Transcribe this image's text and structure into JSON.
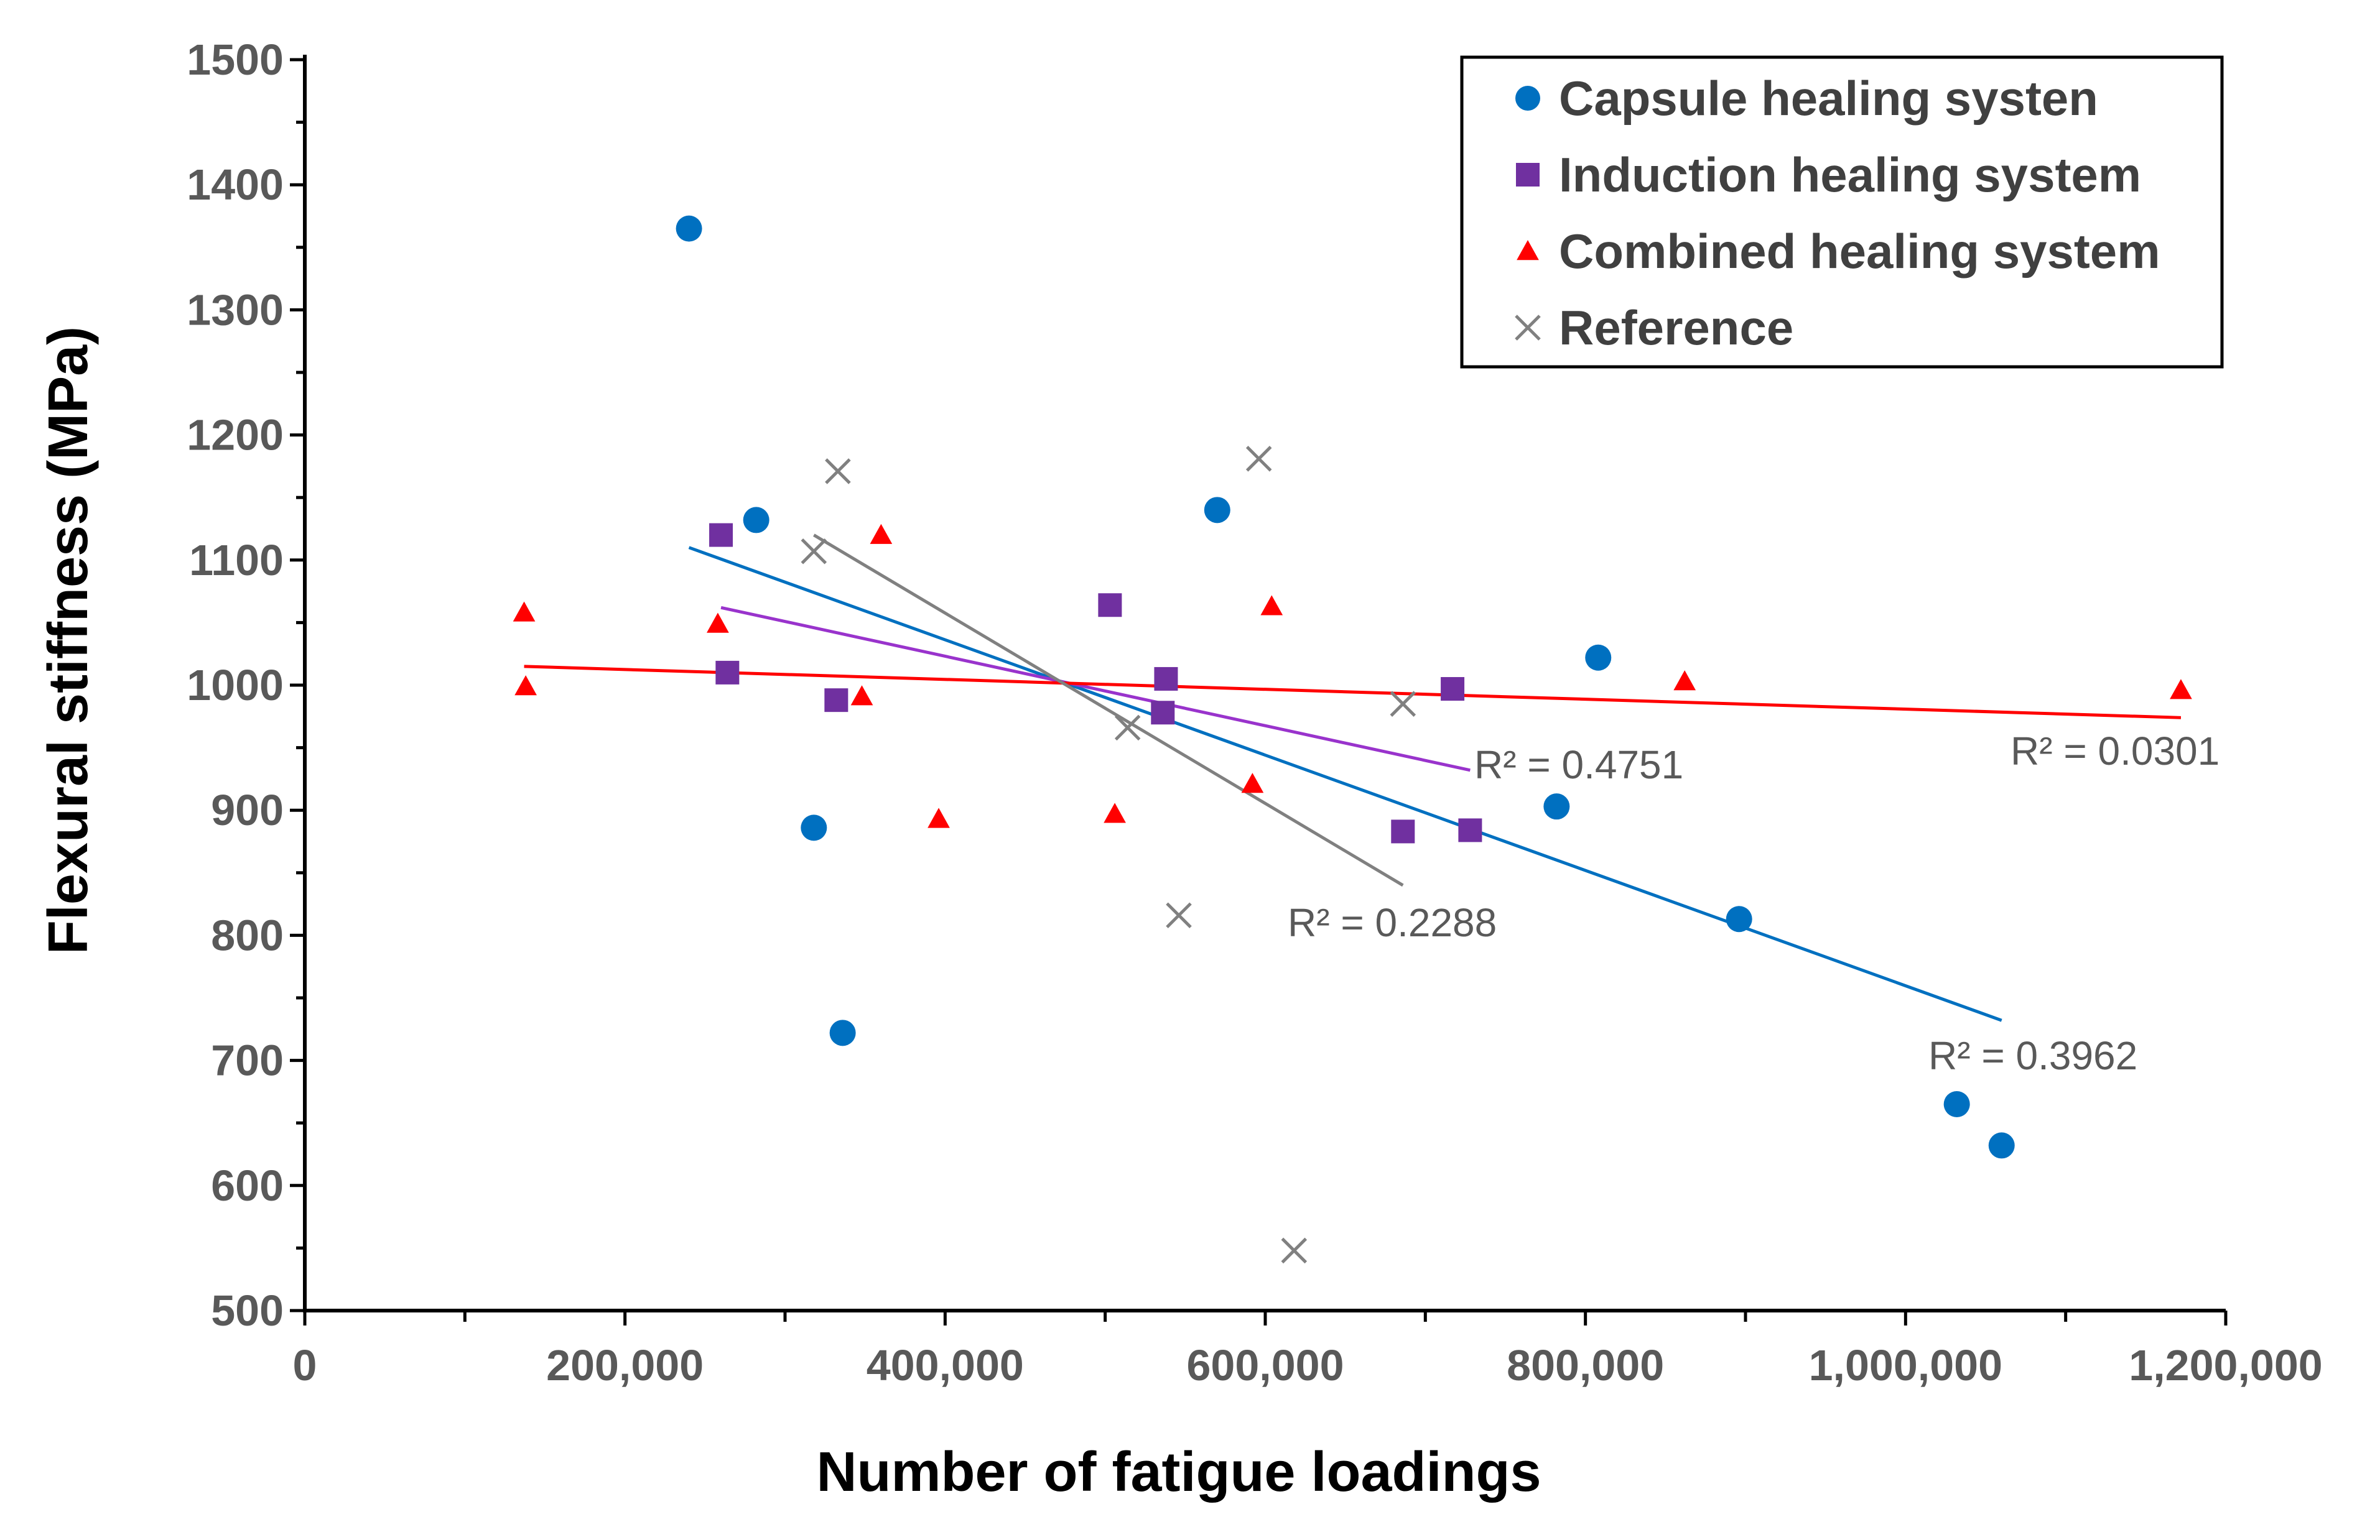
{
  "chart_data": {
    "type": "scatter",
    "xlabel": "Number of fatigue loadings",
    "ylabel": "Flexural stiffness (MPa)",
    "xlim": [
      0,
      1200000
    ],
    "ylim": [
      500,
      1500
    ],
    "x_major_step": 200000,
    "x_minor_step": 100000,
    "y_step": 100,
    "x_tick_labels": [
      "0",
      "200,000",
      "400,000",
      "600,000",
      "800,000",
      "1,000,000",
      "1,200,000"
    ],
    "y_tick_labels": [
      "500",
      "600",
      "700",
      "800",
      "900",
      "1000",
      "1100",
      "1200",
      "1300",
      "1400",
      "1500"
    ],
    "legend_position": "top-right",
    "series": [
      {
        "name": "Capsule healing systen",
        "marker": "circle",
        "color": "#0070C0",
        "points": [
          [
            240000,
            1365
          ],
          [
            282000,
            1132
          ],
          [
            318000,
            886
          ],
          [
            336000,
            722
          ],
          [
            570000,
            1140
          ],
          [
            782000,
            903
          ],
          [
            808000,
            1022
          ],
          [
            896000,
            813
          ],
          [
            1032000,
            665
          ],
          [
            1060000,
            632
          ]
        ],
        "trendline": {
          "x0": 240000,
          "y0": 1110,
          "x1": 1060000,
          "y1": 732,
          "color": "#0070C0"
        },
        "r2_label": "R² = 0.3962"
      },
      {
        "name": "Induction healing system",
        "marker": "square",
        "color": "#7030A0",
        "points": [
          [
            260000,
            1120
          ],
          [
            264000,
            1010
          ],
          [
            332000,
            988
          ],
          [
            503000,
            1064
          ],
          [
            536000,
            978
          ],
          [
            538000,
            1005
          ],
          [
            686000,
            883
          ],
          [
            717000,
            997
          ],
          [
            728000,
            884
          ]
        ],
        "trendline": {
          "x0": 260000,
          "y0": 1062,
          "x1": 728000,
          "y1": 932,
          "color": "#9933CC"
        },
        "r2_label": "R² = 0.4751"
      },
      {
        "name": "Combined healing system",
        "marker": "triangle",
        "color": "#FF0000",
        "points": [
          [
            137000,
            1058
          ],
          [
            138000,
            999
          ],
          [
            258000,
            1049
          ],
          [
            348000,
            991
          ],
          [
            360000,
            1120
          ],
          [
            396000,
            893
          ],
          [
            506000,
            897
          ],
          [
            592000,
            921
          ],
          [
            604000,
            1063
          ],
          [
            862000,
            1003
          ],
          [
            1172000,
            996
          ]
        ],
        "trendline": {
          "x0": 137000,
          "y0": 1015,
          "x1": 1172000,
          "y1": 974,
          "color": "#FF0000"
        },
        "r2_label": "R² = 0.0301"
      },
      {
        "name": "Reference",
        "marker": "x",
        "color": "#808080",
        "points": [
          [
            318000,
            1107
          ],
          [
            333000,
            1171
          ],
          [
            514000,
            966
          ],
          [
            546000,
            816
          ],
          [
            596000,
            1181
          ],
          [
            618000,
            548
          ],
          [
            686000,
            985
          ]
        ],
        "trendline": {
          "x0": 318000,
          "y0": 1120,
          "x1": 686000,
          "y1": 840,
          "color": "#808080"
        },
        "r2_label": "R² = 0.2288"
      }
    ]
  }
}
